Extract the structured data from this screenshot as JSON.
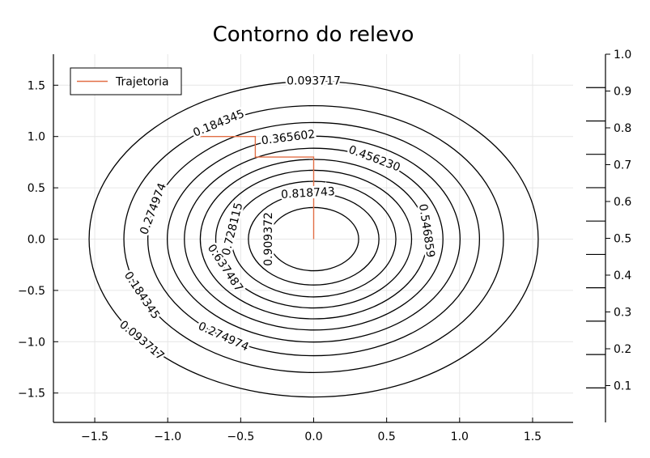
{
  "chart_data": {
    "type": "contour",
    "title": "Contorno do relevo",
    "xlabel": "",
    "ylabel": "",
    "xlim": [
      -1.8,
      1.8
    ],
    "ylim": [
      -1.8,
      1.8
    ],
    "x_ticks": [
      -1.5,
      -1.0,
      -0.5,
      0.0,
      0.5,
      1.0,
      1.5
    ],
    "x_tick_labels": [
      "−1.5",
      "−1.0",
      "−0.5",
      "0.0",
      "0.5",
      "1.0",
      "1.5"
    ],
    "y_ticks": [
      -1.5,
      -1.0,
      -0.5,
      0.0,
      0.5,
      1.0,
      1.5
    ],
    "y_tick_labels": [
      "−1.5",
      "−1.0",
      "−0.5",
      "0.0",
      "0.5",
      "1.0",
      "1.5"
    ],
    "grid": true,
    "surface": "z = exp(-(x^2 + y^2))",
    "contour_levels": [
      0.093717,
      0.184345,
      0.274974,
      0.365602,
      0.45623,
      0.546859,
      0.637487,
      0.728115,
      0.818743,
      0.909372
    ],
    "contour_labels": [
      {
        "text": "0.093717",
        "level": 0.093717,
        "angle_deg": 90
      },
      {
        "text": "0.093717",
        "level": 0.093717,
        "angle_deg": 220
      },
      {
        "text": "0.184345",
        "level": 0.184345,
        "angle_deg": 120
      },
      {
        "text": "0.184345",
        "level": 0.184345,
        "angle_deg": 205
      },
      {
        "text": "0.274974",
        "level": 0.274974,
        "angle_deg": 165
      },
      {
        "text": "0.274974",
        "level": 0.274974,
        "angle_deg": 237
      },
      {
        "text": "0.365602",
        "level": 0.365602,
        "angle_deg": 100
      },
      {
        "text": "0.456230",
        "level": 0.45623,
        "angle_deg": 62
      },
      {
        "text": "0.546859",
        "level": 0.546859,
        "angle_deg": 6
      },
      {
        "text": "0.637487",
        "level": 0.637487,
        "angle_deg": 205
      },
      {
        "text": "0.728115",
        "level": 0.728115,
        "angle_deg": 170
      },
      {
        "text": "0.818743",
        "level": 0.818743,
        "angle_deg": 95
      },
      {
        "text": "0.909372",
        "level": 0.909372,
        "angle_deg": 180
      }
    ],
    "series": [
      {
        "name": "Trajetoria",
        "color": "#e26f46",
        "x": [
          -0.8,
          -0.4,
          -0.4,
          0.0,
          0.0
        ],
        "y": [
          1.0,
          1.0,
          0.8,
          0.8,
          0.0
        ]
      }
    ],
    "legend": {
      "position": "top-left",
      "entries": [
        "Trajetoria"
      ]
    },
    "colorbar": {
      "range": [
        0.0,
        1.0
      ],
      "tick_values": [
        0.1,
        0.2,
        0.3,
        0.4,
        0.5,
        0.6,
        0.7,
        0.8,
        0.9,
        1.0
      ],
      "tick_labels": [
        "0.1",
        "0.2",
        "0.3",
        "0.4",
        "0.5",
        "0.6",
        "0.7",
        "0.8",
        "0.9",
        "1.0"
      ],
      "level_marks": [
        0.093717,
        0.184345,
        0.274974,
        0.365602,
        0.45623,
        0.546859,
        0.637487,
        0.728115,
        0.818743,
        0.909372
      ]
    }
  }
}
